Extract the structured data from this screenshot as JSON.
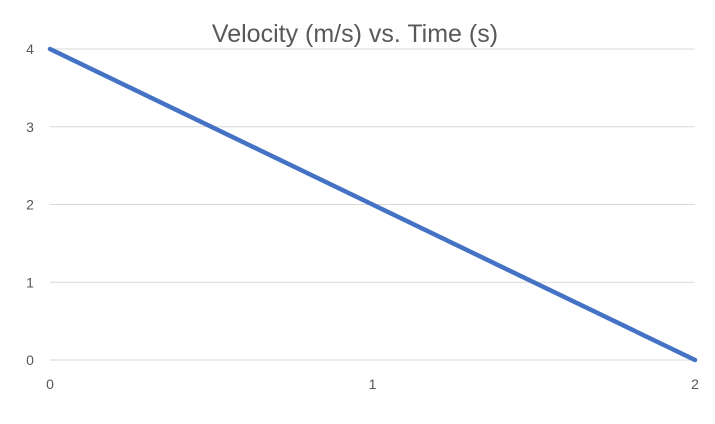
{
  "chart_data": {
    "type": "line",
    "title": "Velocity (m/s) vs. Time (s)",
    "xlabel": "",
    "ylabel": "",
    "x_ticks": [
      "0",
      "1",
      "2"
    ],
    "y_ticks": [
      "0",
      "1",
      "2",
      "3",
      "4"
    ],
    "xlim": [
      0,
      2
    ],
    "ylim": [
      0,
      4
    ],
    "grid": "horizontal",
    "legend": "none",
    "series": [
      {
        "color": "#4472c4",
        "x": [
          0,
          1,
          2
        ],
        "y": [
          4,
          2,
          0
        ]
      }
    ]
  }
}
